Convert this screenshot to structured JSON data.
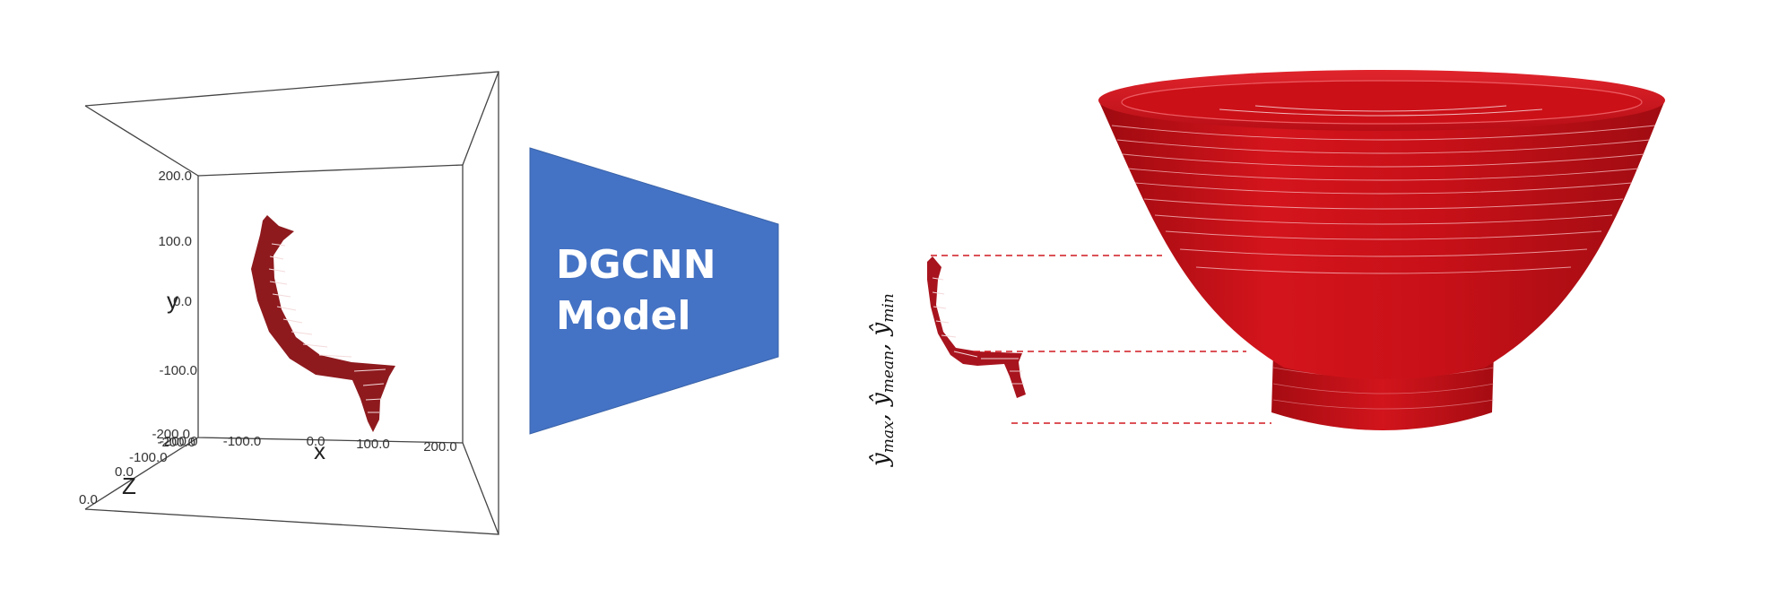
{
  "plot3d": {
    "ticks_y": [
      "200.0",
      "100.0",
      "0.0",
      "-100.0",
      "-200.0"
    ],
    "ticks_x": [
      "-200.0",
      "-100.0",
      "0.0",
      "100.0",
      "200.0"
    ],
    "ticks_z": [
      "-200.0",
      "-100.0",
      "0.0",
      "0.0"
    ],
    "axis_x": "x",
    "axis_y": "y",
    "axis_z": "Z"
  },
  "model": {
    "line1": "DGCNN",
    "line2": "Model",
    "color": "#4472c4"
  },
  "output": {
    "label": "(ŷmax, ŷmean, ŷmin)",
    "label_parts": [
      "ŷ",
      "max",
      ", ŷ",
      "mean",
      ", ŷ",
      "min"
    ],
    "profile_color": "#a8141e",
    "bowl_color": "#cc1018",
    "dash_color": "#d01820"
  }
}
